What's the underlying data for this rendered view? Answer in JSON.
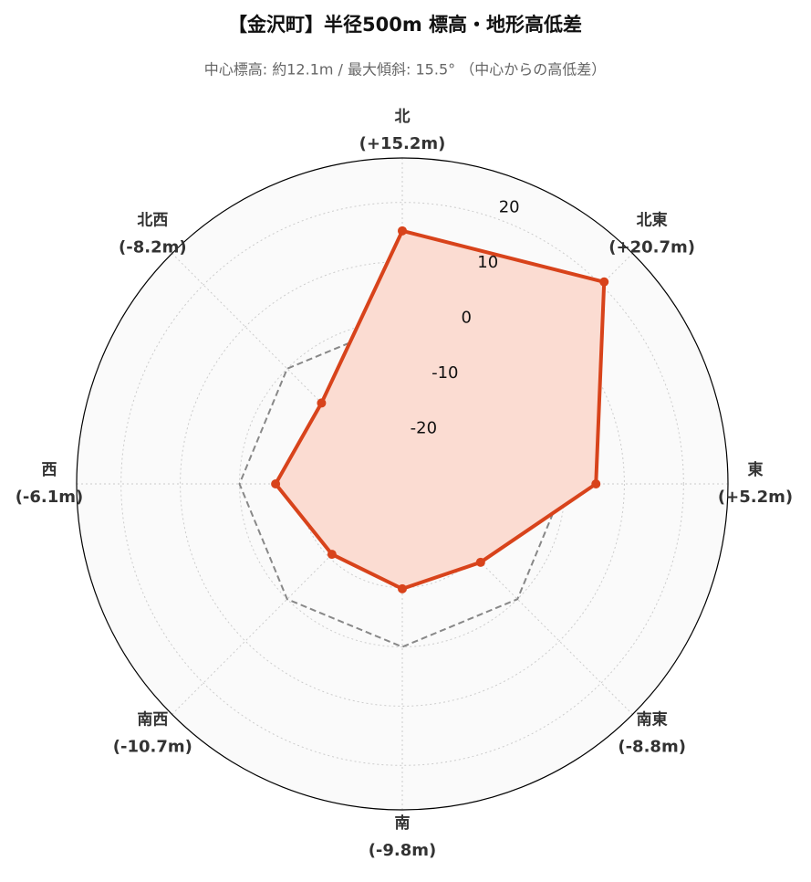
{
  "chart_data": {
    "type": "radar",
    "title": "【金沢町】半径500m 標高・地形高低差",
    "subtitle": "中心標高: 約12.1m / 最大傾斜: 15.5° （中心からの高低差）",
    "categories": [
      "北",
      "北東",
      "東",
      "南東",
      "南",
      "南西",
      "西",
      "北西"
    ],
    "series": [
      {
        "color": "#d8431b",
        "fill": "#fbdcd2",
        "values": [
          15.2,
          20.7,
          5.2,
          -8.8,
          -9.8,
          -10.7,
          -6.1,
          -8.2
        ],
        "value_labels": [
          "(+15.2m)",
          "(+20.7m)",
          "(+5.2m)",
          "(-8.8m)",
          "(-9.8m)",
          "(-10.7m)",
          "(-6.1m)",
          "(-8.2m)"
        ]
      }
    ],
    "reference": {
      "value": 0,
      "color": "#888888",
      "style": "dashed"
    },
    "ylim": [
      -27.5,
      27.5
    ],
    "yticks": [
      -20,
      -10,
      0,
      10,
      20
    ],
    "grid": true
  }
}
